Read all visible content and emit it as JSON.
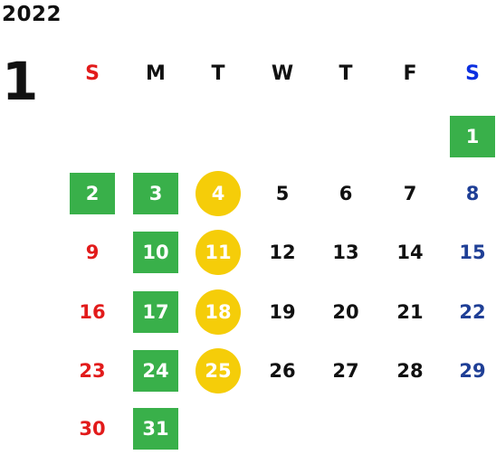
{
  "year": "2022",
  "month": "1",
  "colors": {
    "green": "#39b04a",
    "yellow": "#f5cd09",
    "sunday_red": "#e21b1b",
    "saturday_blue": "#1f3f96",
    "saturday_header_blue": "#0b2fe0",
    "weekday_black": "#111111",
    "white": "#ffffff"
  },
  "weekdays": [
    {
      "label": "S",
      "kind": "sun"
    },
    {
      "label": "M",
      "kind": "normal"
    },
    {
      "label": "T",
      "kind": "normal"
    },
    {
      "label": "W",
      "kind": "normal"
    },
    {
      "label": "T",
      "kind": "normal"
    },
    {
      "label": "F",
      "kind": "normal"
    },
    {
      "label": "S",
      "kind": "sat"
    }
  ],
  "days": [
    {
      "d": "1",
      "row": 0,
      "col": 6,
      "mark": "green"
    },
    {
      "d": "2",
      "row": 1,
      "col": 0,
      "mark": "green"
    },
    {
      "d": "3",
      "row": 1,
      "col": 1,
      "mark": "green"
    },
    {
      "d": "4",
      "row": 1,
      "col": 2,
      "mark": "yellow"
    },
    {
      "d": "5",
      "row": 1,
      "col": 3,
      "mark": "none"
    },
    {
      "d": "6",
      "row": 1,
      "col": 4,
      "mark": "none"
    },
    {
      "d": "7",
      "row": 1,
      "col": 5,
      "mark": "none"
    },
    {
      "d": "8",
      "row": 1,
      "col": 6,
      "mark": "none"
    },
    {
      "d": "9",
      "row": 2,
      "col": 0,
      "mark": "none"
    },
    {
      "d": "10",
      "row": 2,
      "col": 1,
      "mark": "green"
    },
    {
      "d": "11",
      "row": 2,
      "col": 2,
      "mark": "yellow"
    },
    {
      "d": "12",
      "row": 2,
      "col": 3,
      "mark": "none"
    },
    {
      "d": "13",
      "row": 2,
      "col": 4,
      "mark": "none"
    },
    {
      "d": "14",
      "row": 2,
      "col": 5,
      "mark": "none"
    },
    {
      "d": "15",
      "row": 2,
      "col": 6,
      "mark": "none"
    },
    {
      "d": "16",
      "row": 3,
      "col": 0,
      "mark": "none"
    },
    {
      "d": "17",
      "row": 3,
      "col": 1,
      "mark": "green"
    },
    {
      "d": "18",
      "row": 3,
      "col": 2,
      "mark": "yellow"
    },
    {
      "d": "19",
      "row": 3,
      "col": 3,
      "mark": "none"
    },
    {
      "d": "20",
      "row": 3,
      "col": 4,
      "mark": "none"
    },
    {
      "d": "21",
      "row": 3,
      "col": 5,
      "mark": "none"
    },
    {
      "d": "22",
      "row": 3,
      "col": 6,
      "mark": "none"
    },
    {
      "d": "23",
      "row": 4,
      "col": 0,
      "mark": "none"
    },
    {
      "d": "24",
      "row": 4,
      "col": 1,
      "mark": "green"
    },
    {
      "d": "25",
      "row": 4,
      "col": 2,
      "mark": "yellow"
    },
    {
      "d": "26",
      "row": 4,
      "col": 3,
      "mark": "none"
    },
    {
      "d": "27",
      "row": 4,
      "col": 4,
      "mark": "none"
    },
    {
      "d": "28",
      "row": 4,
      "col": 5,
      "mark": "none"
    },
    {
      "d": "29",
      "row": 4,
      "col": 6,
      "mark": "none"
    },
    {
      "d": "30",
      "row": 5,
      "col": 0,
      "mark": "none"
    },
    {
      "d": "31",
      "row": 5,
      "col": 1,
      "mark": "green"
    }
  ]
}
